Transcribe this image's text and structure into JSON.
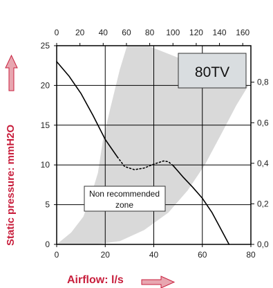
{
  "chart_data": {
    "type": "line",
    "model_label": "80TV",
    "zone_label_line1": "Non recommended",
    "zone_label_line2": "zone",
    "xlabel": "Airflow: l/s",
    "ylabel": "Static pressure: mmH2O",
    "x_bottom": {
      "lim": [
        0,
        80
      ],
      "ticks": [
        0,
        20,
        40,
        60,
        80
      ],
      "tick_labels": [
        "0",
        "20",
        "40",
        "60",
        "80"
      ]
    },
    "x_top": {
      "lim": [
        0,
        167
      ],
      "ticks": [
        0,
        20,
        40,
        60,
        80,
        100,
        120,
        140,
        160
      ],
      "tick_labels": [
        "0",
        "20",
        "40",
        "60",
        "80",
        "100",
        "120",
        "140",
        "160"
      ]
    },
    "y_left": {
      "lim": [
        0,
        25
      ],
      "ticks": [
        0,
        5,
        10,
        15,
        20,
        25
      ],
      "tick_labels": [
        "0",
        "5",
        "10",
        "15",
        "20",
        "25"
      ]
    },
    "y_right": {
      "lim": [
        0,
        0.98
      ],
      "ticks": [
        0,
        0.2,
        0.4,
        0.6,
        0.8
      ],
      "tick_labels": [
        "0,0",
        "0,2",
        "0,4",
        "0,6",
        "0,8"
      ]
    },
    "grid": true,
    "series": [
      {
        "segments": [
          {
            "style": "solid",
            "points": [
              [
                0,
                23
              ],
              [
                5,
                21.2
              ],
              [
                10,
                19
              ],
              [
                15,
                16.2
              ],
              [
                20,
                13.2
              ],
              [
                25,
                11
              ]
            ]
          },
          {
            "style": "dotted",
            "points": [
              [
                25,
                11
              ],
              [
                28,
                9.8
              ],
              [
                32,
                9.4
              ],
              [
                36,
                9.6
              ],
              [
                40,
                10.1
              ],
              [
                44,
                10.5
              ],
              [
                46,
                10.4
              ],
              [
                48,
                9.9
              ]
            ]
          },
          {
            "style": "solid",
            "points": [
              [
                48,
                9.9
              ],
              [
                52,
                8.5
              ],
              [
                56,
                7.2
              ],
              [
                60,
                5.8
              ],
              [
                64,
                4
              ],
              [
                67,
                2.3
              ],
              [
                71,
                0
              ]
            ]
          }
        ]
      }
    ],
    "zone": {
      "fill": "#d9d9d9",
      "left_edge": [
        [
          29,
          25
        ],
        [
          26,
          22
        ],
        [
          22,
          17
        ],
        [
          19,
          13
        ],
        [
          17,
          9
        ],
        [
          14,
          6
        ],
        [
          11,
          3.5
        ],
        [
          6,
          1.5
        ],
        [
          0,
          0
        ]
      ],
      "right_edge": [
        [
          79,
          20
        ],
        [
          74,
          17.5
        ],
        [
          68,
          14
        ],
        [
          61,
          10
        ],
        [
          54,
          6.8
        ],
        [
          46,
          4
        ],
        [
          36,
          1.8
        ],
        [
          26,
          0.4
        ],
        [
          16,
          0
        ]
      ],
      "top_edge": [
        [
          29,
          25
        ],
        [
          37.5,
          25
        ]
      ]
    },
    "colors": {
      "curve": "#000000",
      "axis_title": "#c81e3c",
      "label_box": "#d9dde0"
    }
  }
}
